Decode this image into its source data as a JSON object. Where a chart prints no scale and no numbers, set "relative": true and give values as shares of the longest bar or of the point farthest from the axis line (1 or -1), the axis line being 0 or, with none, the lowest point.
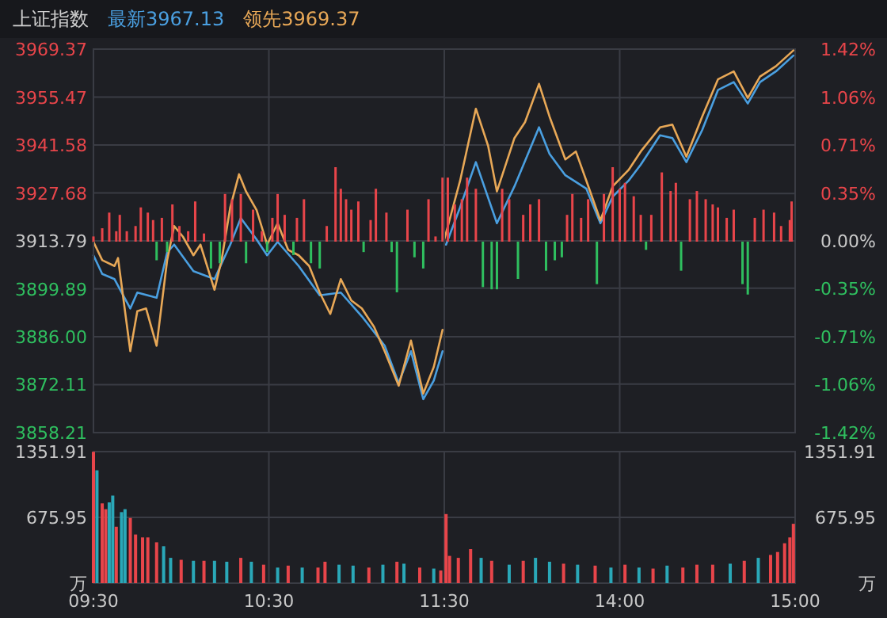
{
  "chart_data": [
    {
      "type": "line",
      "title": "上证指数",
      "legend": "top left",
      "grid": true,
      "tick_labels": "y",
      "xlim": [
        9.5,
        11.5
      ],
      "xticks": [
        {
          "value": 9.5,
          "label": null
        },
        {
          "value": 10.5,
          "label": null
        },
        {
          "value": 11.5,
          "label": null
        }
      ],
      "ylim": [
        3858.21,
        3969.37
      ],
      "yticks": [
        3969.37,
        3955.47,
        3941.58,
        3927.68,
        3913.79,
        3899.89,
        {
          "value": 3886,
          "label": "3886.00"
        },
        3872.11,
        3858.21
      ],
      "series": [
        {
          "name": "最新3967.13",
          "color": "#4a9fe0",
          "x": [
            9.5,
            9.55,
            9.62,
            9.71,
            9.75,
            9.86,
            9.92,
            9.96,
            10.07,
            10.19,
            10.28,
            10.34,
            10.43,
            10.49,
            10.55,
            10.67,
            10.79,
            10.91,
            11.03,
            11.16,
            11.24,
            11.31,
            11.38,
            11.44,
            11.49
          ],
          "values": [
            3909.6,
            3904.2,
            3902.7,
            3894.2,
            3898.8,
            3897.3,
            3910.4,
            3912.7,
            3905.0,
            3902.7,
            3912.7,
            3920.4,
            3914.2,
            3909.6,
            3913.5,
            3906.5,
            3898.0,
            3898.8,
            3891.9,
            3883.4,
            3872.6,
            3881.8,
            3867.9,
            3873.3,
            3881.8
          ]
        },
        {
          "name": "领先3969.37",
          "color": "#e8a857",
          "x": [
            9.5,
            9.55,
            9.62,
            9.64,
            9.71,
            9.75,
            9.8,
            9.86,
            9.92,
            9.96,
            10.01,
            10.07,
            10.11,
            10.19,
            10.23,
            10.28,
            10.33,
            10.37,
            10.43,
            10.49,
            10.55,
            10.61,
            10.67,
            10.73,
            10.79,
            10.85,
            10.91,
            10.97,
            11.03,
            11.1,
            11.16,
            11.24,
            11.31,
            11.38,
            11.44,
            11.49
          ],
          "values": [
            3913.5,
            3908.2,
            3906.5,
            3908.8,
            3881.8,
            3893.4,
            3894.2,
            3883.4,
            3908.1,
            3918.1,
            3915.0,
            3909.6,
            3912.7,
            3899.6,
            3908.1,
            3923.5,
            3933.1,
            3928.1,
            3922.7,
            3912.7,
            3918.9,
            3911.2,
            3909.6,
            3906.5,
            3898.8,
            3892.6,
            3902.7,
            3896.5,
            3894.2,
            3888.8,
            3881.8,
            3871.8,
            3884.9,
            3869.5,
            3877.2,
            3888.0
          ]
        }
      ]
    },
    {
      "type": "line",
      "grid": true,
      "tick_labels": "y",
      "xlim": [
        13,
        15
      ],
      "xticks": [
        {
          "value": 14,
          "label": null
        },
        {
          "value": 15,
          "label": null
        }
      ],
      "ylim": [
        3858.21,
        3969.37
      ],
      "y2lim": [
        -1.42,
        1.42
      ],
      "y2ticks": [
        {
          "value": 1.42,
          "label": "1.42%"
        },
        {
          "value": 1.06,
          "label": "1.06%"
        },
        {
          "value": 0.71,
          "label": "0.71%"
        },
        {
          "value": 0.35,
          "label": "0.35%"
        },
        {
          "value": 0,
          "label": "0.00%"
        },
        {
          "value": -0.35,
          "label": "-0.35%"
        },
        {
          "value": -0.71,
          "label": "-0.71%"
        },
        {
          "value": -1.06,
          "label": "-1.06%"
        },
        {
          "value": -1.42,
          "label": "-1.42%"
        }
      ],
      "series": [
        {
          "color": "#4a9fe0",
          "x": [
            13.01,
            13.09,
            13.18,
            13.3,
            13.4,
            13.54,
            13.6,
            13.69,
            13.81,
            13.89,
            13.96,
            14.05,
            14.12,
            14.23,
            14.3,
            14.38,
            14.47,
            14.56,
            14.65,
            14.73,
            14.8,
            14.89,
            14.99
          ],
          "values": [
            3912.7,
            3923.5,
            3936.6,
            3918.9,
            3929.6,
            3946.7,
            3939.0,
            3932.8,
            3928.9,
            3918.9,
            3926.6,
            3931.2,
            3935.9,
            3944.4,
            3943.6,
            3936.6,
            3945.9,
            3957.5,
            3959.8,
            3953.6,
            3959.8,
            3962.9,
            3967.5
          ]
        },
        {
          "color": "#e8a857",
          "x": [
            13.0,
            13.09,
            13.18,
            13.25,
            13.3,
            13.4,
            13.46,
            13.54,
            13.6,
            13.69,
            13.75,
            13.81,
            13.89,
            13.96,
            14.05,
            14.12,
            14.23,
            14.3,
            14.38,
            14.47,
            14.56,
            14.65,
            14.73,
            14.8,
            14.89,
            14.99
          ],
          "values": [
            3914.2,
            3931.2,
            3952.1,
            3941.3,
            3928.1,
            3943.6,
            3948.2,
            3959.3,
            3949.8,
            3937.4,
            3939.7,
            3931.2,
            3919.7,
            3929.6,
            3934.3,
            3939.7,
            3946.7,
            3947.5,
            3938.2,
            3949.8,
            3960.6,
            3962.9,
            3955.2,
            3961.4,
            3964.4,
            3969.0
          ]
        }
      ]
    },
    {
      "type": "bar",
      "relative": true,
      "tick_labels": false,
      "xlim": [
        9.5,
        11.5
      ],
      "series": [
        {
          "color": "#e8454a",
          "x": [
            9.5,
            9.55,
            9.59,
            9.63,
            9.65,
            9.69,
            9.74,
            9.77,
            9.81,
            9.84,
            9.89,
            9.95,
            9.99,
            10.04,
            10.08,
            10.13,
            10.25,
            10.29,
            10.34,
            10.41,
            10.46,
            10.52,
            10.55,
            10.59,
            10.66,
            10.7,
            10.83,
            10.88,
            10.91,
            10.94,
            10.97,
            11.01,
            11.08,
            11.11,
            11.17,
            11.29,
            11.41,
            11.45,
            11.49
          ],
          "values": [
            0.07,
            0.18,
            0.39,
            0.14,
            0.36,
            0.14,
            0.21,
            0.46,
            0.39,
            0.29,
            0.32,
            0.5,
            0.21,
            0.14,
            0.54,
            0.11,
            0.64,
            0.57,
            0.64,
            0.43,
            0.14,
            0.32,
            0.64,
            0.36,
            0.32,
            0.57,
            0.21,
            1.0,
            0.71,
            0.57,
            0.43,
            0.54,
            0.29,
            0.71,
            0.39,
            0.43,
            0.57,
            0.07,
            0.86
          ]
        },
        {
          "color": "#2fbf5f",
          "x": [
            9.86,
            9.92,
            10.17,
            10.22,
            10.37,
            10.49,
            10.64,
            10.74,
            10.79,
            11.04,
            11.2,
            11.23,
            11.33,
            11.38
          ],
          "values": [
            -0.25,
            -0.14,
            -0.36,
            -0.29,
            -0.29,
            -0.14,
            -0.18,
            -0.29,
            -0.36,
            -0.14,
            -0.14,
            -0.68,
            -0.21,
            -0.36
          ]
        }
      ]
    },
    {
      "type": "bar",
      "relative": true,
      "tick_labels": false,
      "xlim": [
        13,
        15
      ],
      "series": [
        {
          "color": "#e8454a",
          "x": [
            13.02,
            13.06,
            13.1,
            13.13,
            13.18,
            13.33,
            13.37,
            13.45,
            13.49,
            13.54,
            13.7,
            13.73,
            13.78,
            13.82,
            13.91,
            13.96,
            14,
            14.03,
            14.08,
            14.12,
            14.18,
            14.24,
            14.29,
            14.32,
            14.4,
            14.44,
            14.49,
            14.53,
            14.56,
            14.61,
            14.65,
            14.77,
            14.82,
            14.88,
            14.92,
            14.97,
            14.98
          ],
          "values": [
            0.86,
            0.5,
            0.57,
            0.86,
            0.71,
            0.71,
            0.57,
            0.36,
            0.5,
            0.57,
            0.36,
            0.64,
            0.32,
            0.57,
            0.64,
            1.0,
            0.71,
            0.79,
            0.61,
            0.36,
            0.36,
            0.93,
            0.68,
            0.79,
            0.57,
            0.68,
            0.57,
            0.5,
            0.46,
            0.32,
            0.43,
            0.32,
            0.43,
            0.39,
            0.21,
            0.29,
            0.54
          ]
        },
        {
          "color": "#2fbf5f",
          "x": [
            13.22,
            13.27,
            13.3,
            13.42,
            13.58,
            13.63,
            13.67,
            13.87,
            14.15,
            14.35,
            14.7,
            14.73
          ],
          "values": [
            -0.61,
            -0.64,
            -0.64,
            -0.5,
            -0.39,
            -0.25,
            -0.21,
            -0.57,
            -0.11,
            -0.39,
            -0.57,
            -0.71
          ]
        }
      ]
    },
    {
      "type": "bar",
      "grid": true,
      "xlim": [
        9.5,
        11.5
      ],
      "xticks": [
        {
          "value": 9.5,
          "label": "09:30"
        },
        {
          "value": 10.5,
          "label": "10:30"
        },
        {
          "value": 11.5,
          "label": "11:30"
        }
      ],
      "ylim": [
        0,
        1351.91
      ],
      "yticks": [
        {
          "value": 0,
          "label": "万"
        },
        675.95,
        1351.91
      ],
      "x": [
        9.5,
        9.52,
        9.55,
        9.57,
        9.59,
        9.61,
        9.63,
        9.66,
        9.68,
        9.71,
        9.74,
        9.78,
        9.81,
        9.86,
        9.9,
        9.94,
        10,
        10.07,
        10.13,
        10.19,
        10.26,
        10.34,
        10.4,
        10.47,
        10.55,
        10.61,
        10.69,
        10.78,
        10.82,
        10.9,
        10.98,
        11.07,
        11.15,
        11.23,
        11.27,
        11.36,
        11.44,
        11.48
      ],
      "values": [
        1350,
        1160,
        820,
        760,
        830,
        900,
        580,
        730,
        760,
        670,
        500,
        470,
        470,
        420,
        380,
        260,
        240,
        230,
        230,
        230,
        220,
        260,
        220,
        190,
        160,
        180,
        160,
        160,
        220,
        190,
        180,
        160,
        190,
        220,
        200,
        160,
        150,
        130
      ],
      "colors": [
        "#e8454a",
        "#2aa8b8",
        "#e8454a",
        "#e8454a",
        "#2aa8b8",
        "#2aa8b8",
        "#e8454a",
        "#2aa8b8",
        "#2aa8b8",
        "#e8454a",
        "#e8454a",
        "#e8454a",
        "#e8454a",
        "#e8454a",
        "#2aa8b8",
        "#2aa8b8",
        "#e8454a",
        "#2aa8b8",
        "#e8454a",
        "#2aa8b8",
        "#2aa8b8",
        "#e8454a",
        "#2aa8b8",
        "#e8454a",
        "#2aa8b8",
        "#e8454a",
        "#2aa8b8",
        "#e8454a",
        "#e8454a",
        "#2aa8b8",
        "#2aa8b8",
        "#e8454a",
        "#2aa8b8",
        "#e8454a",
        "#2aa8b8",
        "#e8454a",
        "#2aa8b8",
        "#e8454a"
      ]
    },
    {
      "type": "bar",
      "grid": true,
      "xlim": [
        13,
        15
      ],
      "xticks": [
        {
          "value": 14,
          "label": "14:00"
        },
        {
          "value": 15,
          "label": "15:00"
        }
      ],
      "ylim": [
        0,
        1351.91
      ],
      "y2lim": [
        0,
        1351.91
      ],
      "y2ticks": [
        {
          "value": 0,
          "label": "万"
        },
        675.95,
        1351.91
      ],
      "x": [
        13.01,
        13.03,
        13.08,
        13.15,
        13.21,
        13.27,
        13.37,
        13.45,
        13.52,
        13.6,
        13.68,
        13.76,
        13.86,
        13.95,
        14.03,
        14.11,
        14.19,
        14.27,
        14.36,
        14.44,
        14.53,
        14.63,
        14.71,
        14.79,
        14.86,
        14.9,
        14.94,
        14.97,
        14.99
      ],
      "values": [
        710,
        280,
        260,
        350,
        260,
        230,
        190,
        230,
        260,
        220,
        200,
        190,
        180,
        160,
        190,
        160,
        150,
        180,
        160,
        190,
        190,
        200,
        230,
        260,
        290,
        320,
        410,
        470,
        610
      ],
      "colors": [
        "#e8454a",
        "#e8454a",
        "#e8454a",
        "#e8454a",
        "#2aa8b8",
        "#e8454a",
        "#2aa8b8",
        "#e8454a",
        "#2aa8b8",
        "#2aa8b8",
        "#e8454a",
        "#2aa8b8",
        "#e8454a",
        "#2aa8b8",
        "#e8454a",
        "#2aa8b8",
        "#e8454a",
        "#2aa8b8",
        "#e8454a",
        "#e8454a",
        "#e8454a",
        "#2aa8b8",
        "#e8454a",
        "#2aa8b8",
        "#e8454a",
        "#e8454a",
        "#e8454a",
        "#e8454a",
        "#e8454a"
      ]
    }
  ]
}
